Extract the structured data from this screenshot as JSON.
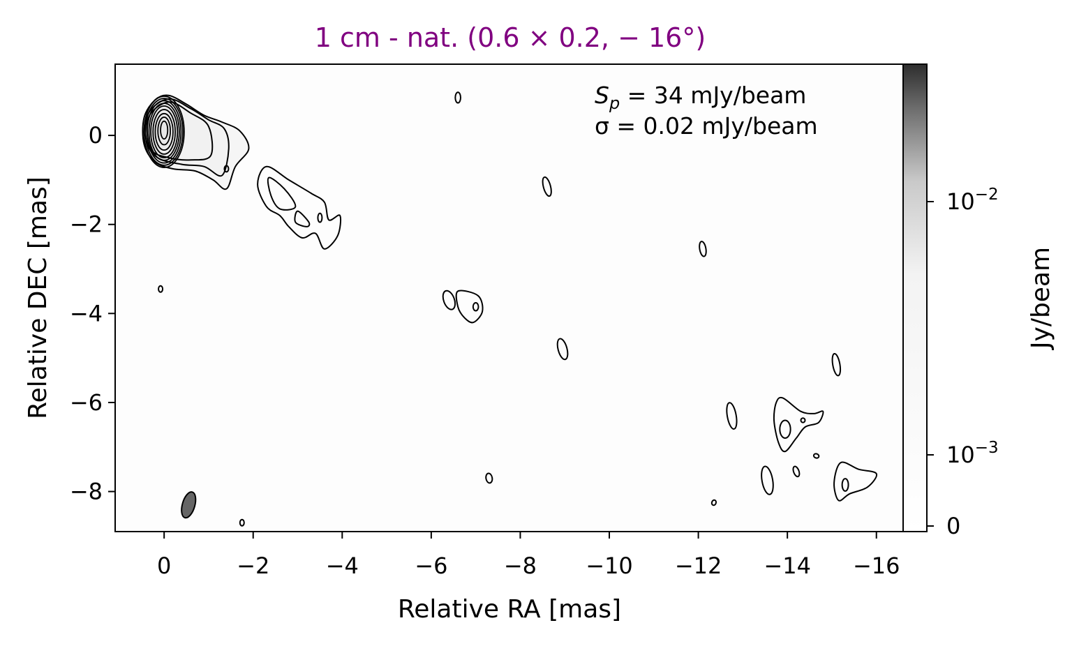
{
  "chart_data": {
    "type": "contour",
    "title": "1 cm - nat. (0.6 × 0.2, − 16°)",
    "xlabel": "Relative RA [mas]",
    "ylabel": "Relative DEC [mas]",
    "xlim": [
      1.1,
      -16.6
    ],
    "ylim": [
      -8.9,
      1.6
    ],
    "x_ticks": [
      0,
      -2,
      -4,
      -6,
      -8,
      -10,
      -12,
      -14,
      -16
    ],
    "x_tick_labels": [
      "0",
      "−2",
      "−4",
      "−6",
      "−8",
      "−10",
      "−12",
      "−14",
      "−16"
    ],
    "y_ticks": [
      0,
      -2,
      -4,
      -6,
      -8
    ],
    "y_tick_labels": [
      "0",
      "−2",
      "−4",
      "−6",
      "−8"
    ],
    "annotations": {
      "peak": "S_p = 34 mJy/beam",
      "peak_sym": "S",
      "peak_sub": "p",
      "peak_rest": " = 34 mJy/beam",
      "rms": "σ = 0.02 mJy/beam"
    },
    "beam": {
      "x": -0.55,
      "y": -8.3,
      "major_mas": 0.6,
      "minor_mas": 0.2,
      "pa_deg": -16
    },
    "colorbar": {
      "label": "Jy/beam",
      "scale": "log",
      "vmin": 0,
      "vmax": 0.034,
      "ticks": [
        {
          "value": 0,
          "label": "0"
        },
        {
          "value": 0.001,
          "base": "10",
          "exp": "−3"
        },
        {
          "value": 0.01,
          "base": "10",
          "exp": "−2"
        }
      ]
    },
    "core_contours": [
      {
        "x": 0.0,
        "y": 0.08,
        "rx": 0.45,
        "ry": 0.8
      },
      {
        "x": 0.0,
        "y": 0.08,
        "rx": 0.42,
        "ry": 0.75
      },
      {
        "x": 0.0,
        "y": 0.08,
        "rx": 0.38,
        "ry": 0.7
      },
      {
        "x": 0.0,
        "y": 0.08,
        "rx": 0.34,
        "ry": 0.64
      },
      {
        "x": 0.0,
        "y": 0.08,
        "rx": 0.3,
        "ry": 0.58
      },
      {
        "x": 0.0,
        "y": 0.08,
        "rx": 0.25,
        "ry": 0.5
      },
      {
        "x": 0.0,
        "y": 0.08,
        "rx": 0.2,
        "ry": 0.41
      },
      {
        "x": 0.0,
        "y": 0.1,
        "rx": 0.14,
        "ry": 0.31
      },
      {
        "x": 0.0,
        "y": 0.12,
        "rx": 0.08,
        "ry": 0.2
      }
    ],
    "jet_contours": [
      [
        [
          -0.1,
          0.9
        ],
        [
          -0.5,
          0.7
        ],
        [
          -0.9,
          0.45
        ],
        [
          -1.3,
          0.3
        ],
        [
          -1.7,
          0.1
        ],
        [
          -1.9,
          -0.3
        ],
        [
          -1.6,
          -0.7
        ],
        [
          -1.4,
          -1.2
        ],
        [
          -1.1,
          -1.0
        ],
        [
          -0.7,
          -0.8
        ],
        [
          -0.2,
          -0.75
        ],
        [
          0.2,
          -0.6
        ],
        [
          0.45,
          -0.2
        ],
        [
          0.45,
          0.4
        ],
        [
          0.2,
          0.8
        ]
      ],
      [
        [
          -0.1,
          0.82
        ],
        [
          -0.6,
          0.6
        ],
        [
          -1.0,
          0.35
        ],
        [
          -1.35,
          0.15
        ],
        [
          -1.45,
          -0.3
        ],
        [
          -1.3,
          -0.9
        ],
        [
          -0.9,
          -0.7
        ],
        [
          -0.4,
          -0.65
        ],
        [
          0.15,
          -0.5
        ],
        [
          0.4,
          -0.1
        ],
        [
          0.35,
          0.5
        ]
      ],
      [
        [
          -0.1,
          0.75
        ],
        [
          -0.6,
          0.5
        ],
        [
          -1.0,
          0.2
        ],
        [
          -1.05,
          -0.45
        ],
        [
          -0.6,
          -0.55
        ],
        [
          -0.1,
          -0.5
        ],
        [
          0.3,
          -0.3
        ],
        [
          0.35,
          0.4
        ]
      ],
      [
        [
          -2.3,
          -0.7
        ],
        [
          -2.8,
          -1.0
        ],
        [
          -3.3,
          -1.3
        ],
        [
          -3.6,
          -1.5
        ],
        [
          -3.7,
          -1.9
        ],
        [
          -3.95,
          -1.8
        ],
        [
          -3.9,
          -2.25
        ],
        [
          -3.6,
          -2.55
        ],
        [
          -3.4,
          -2.2
        ],
        [
          -3.1,
          -2.3
        ],
        [
          -2.8,
          -2.05
        ],
        [
          -2.6,
          -1.8
        ],
        [
          -2.3,
          -1.6
        ],
        [
          -2.1,
          -1.1
        ]
      ],
      [
        [
          -2.35,
          -0.95
        ],
        [
          -2.7,
          -1.2
        ],
        [
          -2.95,
          -1.6
        ],
        [
          -2.6,
          -1.65
        ],
        [
          -2.4,
          -1.35
        ]
      ],
      [
        [
          -3.0,
          -1.7
        ],
        [
          -3.25,
          -1.95
        ],
        [
          -3.2,
          -2.05
        ],
        [
          -2.95,
          -1.95
        ]
      ],
      [
        [
          -6.6,
          -3.5
        ],
        [
          -7.05,
          -3.6
        ],
        [
          -7.15,
          -3.95
        ],
        [
          -6.95,
          -4.2
        ],
        [
          -6.75,
          -4.1
        ],
        [
          -6.6,
          -3.85
        ]
      ],
      [
        [
          -13.9,
          -5.9
        ],
        [
          -14.3,
          -6.2
        ],
        [
          -14.6,
          -6.25
        ],
        [
          -14.8,
          -6.2
        ],
        [
          -14.7,
          -6.45
        ],
        [
          -14.4,
          -6.55
        ],
        [
          -14.2,
          -6.8
        ],
        [
          -13.95,
          -7.1
        ],
        [
          -13.8,
          -6.9
        ],
        [
          -13.7,
          -6.4
        ],
        [
          -13.75,
          -6.0
        ]
      ],
      [
        [
          -15.2,
          -7.35
        ],
        [
          -15.6,
          -7.5
        ],
        [
          -16.0,
          -7.6
        ],
        [
          -15.8,
          -7.9
        ],
        [
          -15.4,
          -8.05
        ],
        [
          -15.15,
          -8.2
        ],
        [
          -15.05,
          -7.8
        ]
      ]
    ],
    "blobs": [
      {
        "x": -6.6,
        "y": 0.85,
        "rx": 0.06,
        "ry": 0.12,
        "rot": 0
      },
      {
        "x": -8.6,
        "y": -1.15,
        "rx": 0.08,
        "ry": 0.22,
        "rot": -15
      },
      {
        "x": -12.1,
        "y": -2.55,
        "rx": 0.07,
        "ry": 0.17,
        "rot": -10
      },
      {
        "x": -6.4,
        "y": -3.7,
        "rx": 0.12,
        "ry": 0.22,
        "rot": -20
      },
      {
        "x": -7.0,
        "y": -3.85,
        "rx": 0.06,
        "ry": 0.09,
        "rot": 0
      },
      {
        "x": -8.95,
        "y": -4.8,
        "rx": 0.1,
        "ry": 0.24,
        "rot": -15
      },
      {
        "x": -15.1,
        "y": -5.15,
        "rx": 0.08,
        "ry": 0.25,
        "rot": -10
      },
      {
        "x": -12.75,
        "y": -6.3,
        "rx": 0.1,
        "ry": 0.3,
        "rot": -10
      },
      {
        "x": -13.95,
        "y": -6.6,
        "rx": 0.12,
        "ry": 0.2,
        "rot": 0
      },
      {
        "x": -14.35,
        "y": -6.4,
        "rx": 0.03,
        "ry": 0.05,
        "rot": 0
      },
      {
        "x": -14.65,
        "y": -7.2,
        "rx": 0.06,
        "ry": 0.04,
        "rot": 20
      },
      {
        "x": -14.2,
        "y": -7.55,
        "rx": 0.06,
        "ry": 0.12,
        "rot": -20
      },
      {
        "x": -13.55,
        "y": -7.75,
        "rx": 0.12,
        "ry": 0.32,
        "rot": -10
      },
      {
        "x": -15.3,
        "y": -7.85,
        "rx": 0.07,
        "ry": 0.14,
        "rot": 0
      },
      {
        "x": -7.3,
        "y": -7.7,
        "rx": 0.07,
        "ry": 0.11,
        "rot": -10
      },
      {
        "x": -12.35,
        "y": -8.25,
        "rx": 0.04,
        "ry": 0.06,
        "rot": 20
      },
      {
        "x": -1.75,
        "y": -8.7,
        "rx": 0.04,
        "ry": 0.07,
        "rot": 0
      },
      {
        "x": 0.08,
        "y": -3.45,
        "rx": 0.03,
        "ry": 0.07,
        "rot": 0
      },
      {
        "x": -1.4,
        "y": -0.75,
        "rx": 0.03,
        "ry": 0.07,
        "rot": 0
      },
      {
        "x": -3.5,
        "y": -1.85,
        "rx": 0.03,
        "ry": 0.1,
        "rot": 0
      }
    ]
  }
}
